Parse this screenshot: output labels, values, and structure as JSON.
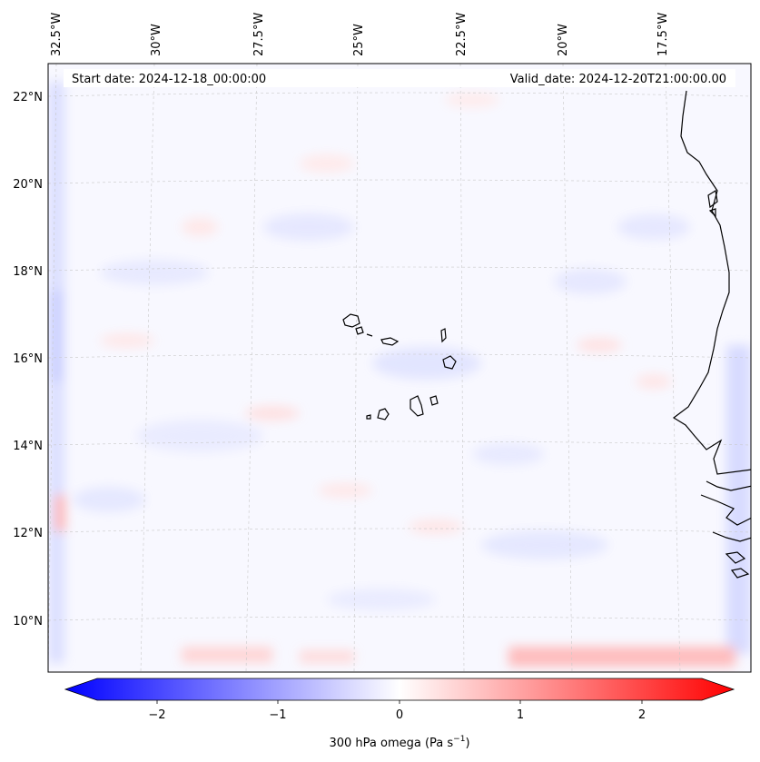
{
  "header": {
    "start_date": "Start date: 2024-12-18_00:00:00",
    "valid_date": "Valid_date: 2024-12-20T21:00:00.00"
  },
  "axes": {
    "lon_labels": [
      "32.5°W",
      "30°W",
      "27.5°W",
      "25°W",
      "22.5°W",
      "20°W",
      "17.5°W"
    ],
    "lat_labels": [
      "22°N",
      "20°N",
      "18°N",
      "16°N",
      "14°N",
      "12°N",
      "10°N"
    ]
  },
  "colorbar": {
    "ticks": [
      "−2",
      "−1",
      "0",
      "1",
      "2"
    ],
    "label": "300 hPa omega (Pa s",
    "label_sup": "−1",
    "label_end": ")",
    "color_min": "#0000ff",
    "color_mid": "#ffffff",
    "color_max": "#ff0000"
  },
  "colors": {
    "map_background": "#f8f8ff",
    "coastline": "#000000",
    "gridline": "#c8c8c8"
  }
}
